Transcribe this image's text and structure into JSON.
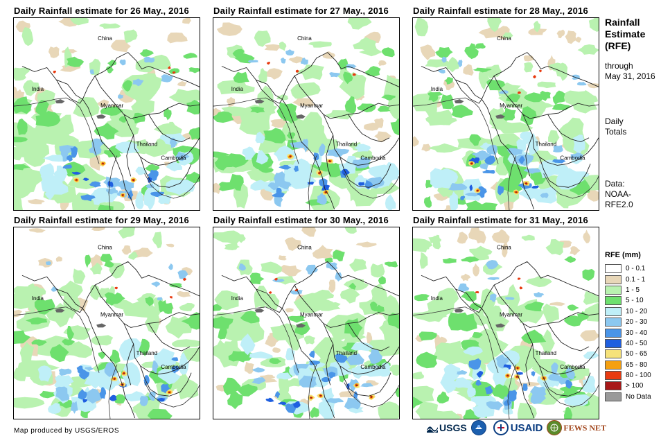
{
  "panels": [
    {
      "title": "Daily Rainfall estimate for 26 May., 2016",
      "seed": 26
    },
    {
      "title": "Daily Rainfall estimate for 27 May., 2016",
      "seed": 27
    },
    {
      "title": "Daily Rainfall estimate for 28 May., 2016",
      "seed": 28
    },
    {
      "title": "Daily Rainfall estimate for 29 May., 2016",
      "seed": 29
    },
    {
      "title": "Daily Rainfall estimate for 30 May., 2016",
      "seed": 30
    },
    {
      "title": "Daily Rainfall estimate for 31 May., 2016",
      "seed": 31
    }
  ],
  "country_labels": {
    "china": "China",
    "india": "India",
    "myanmar": "Myanmar",
    "thailand": "Thailand",
    "cambodia": "Cambodia"
  },
  "side": {
    "title_line1": "Rainfall",
    "title_line2": "Estimate",
    "title_line3": "(RFE)",
    "through_line1": "through",
    "through_line2": "May 31, 2016",
    "daily_line1": "Daily",
    "daily_line2": "Totals",
    "data_line1": "Data:",
    "data_line2": "NOAA-",
    "data_line3": "RFE2.0"
  },
  "legend": {
    "title": "RFE (mm)",
    "items": [
      {
        "label": "0 - 0.1",
        "color": "#ffffff"
      },
      {
        "label": "0.1 - 1",
        "color": "#e8d7b8"
      },
      {
        "label": "1 - 5",
        "color": "#b9f2b0"
      },
      {
        "label": "5 - 10",
        "color": "#6ee06e"
      },
      {
        "label": "10 - 20",
        "color": "#bfeff8"
      },
      {
        "label": "20 - 30",
        "color": "#8cc8f0"
      },
      {
        "label": "30 - 40",
        "color": "#4a95e8"
      },
      {
        "label": "40 - 50",
        "color": "#1f5fe0"
      },
      {
        "label": "50 - 65",
        "color": "#f6e27a"
      },
      {
        "label": "65 - 80",
        "color": "#f5a010"
      },
      {
        "label": "80 - 100",
        "color": "#e83a10"
      },
      {
        "label": "> 100",
        "color": "#a81818"
      },
      {
        "label": "No Data",
        "color": "#999999"
      }
    ]
  },
  "credit": "Map produced by USGS/EROS",
  "logos": {
    "usgs": "USGS",
    "usaid": "USAID",
    "fewsnet": "FEWS NET"
  }
}
